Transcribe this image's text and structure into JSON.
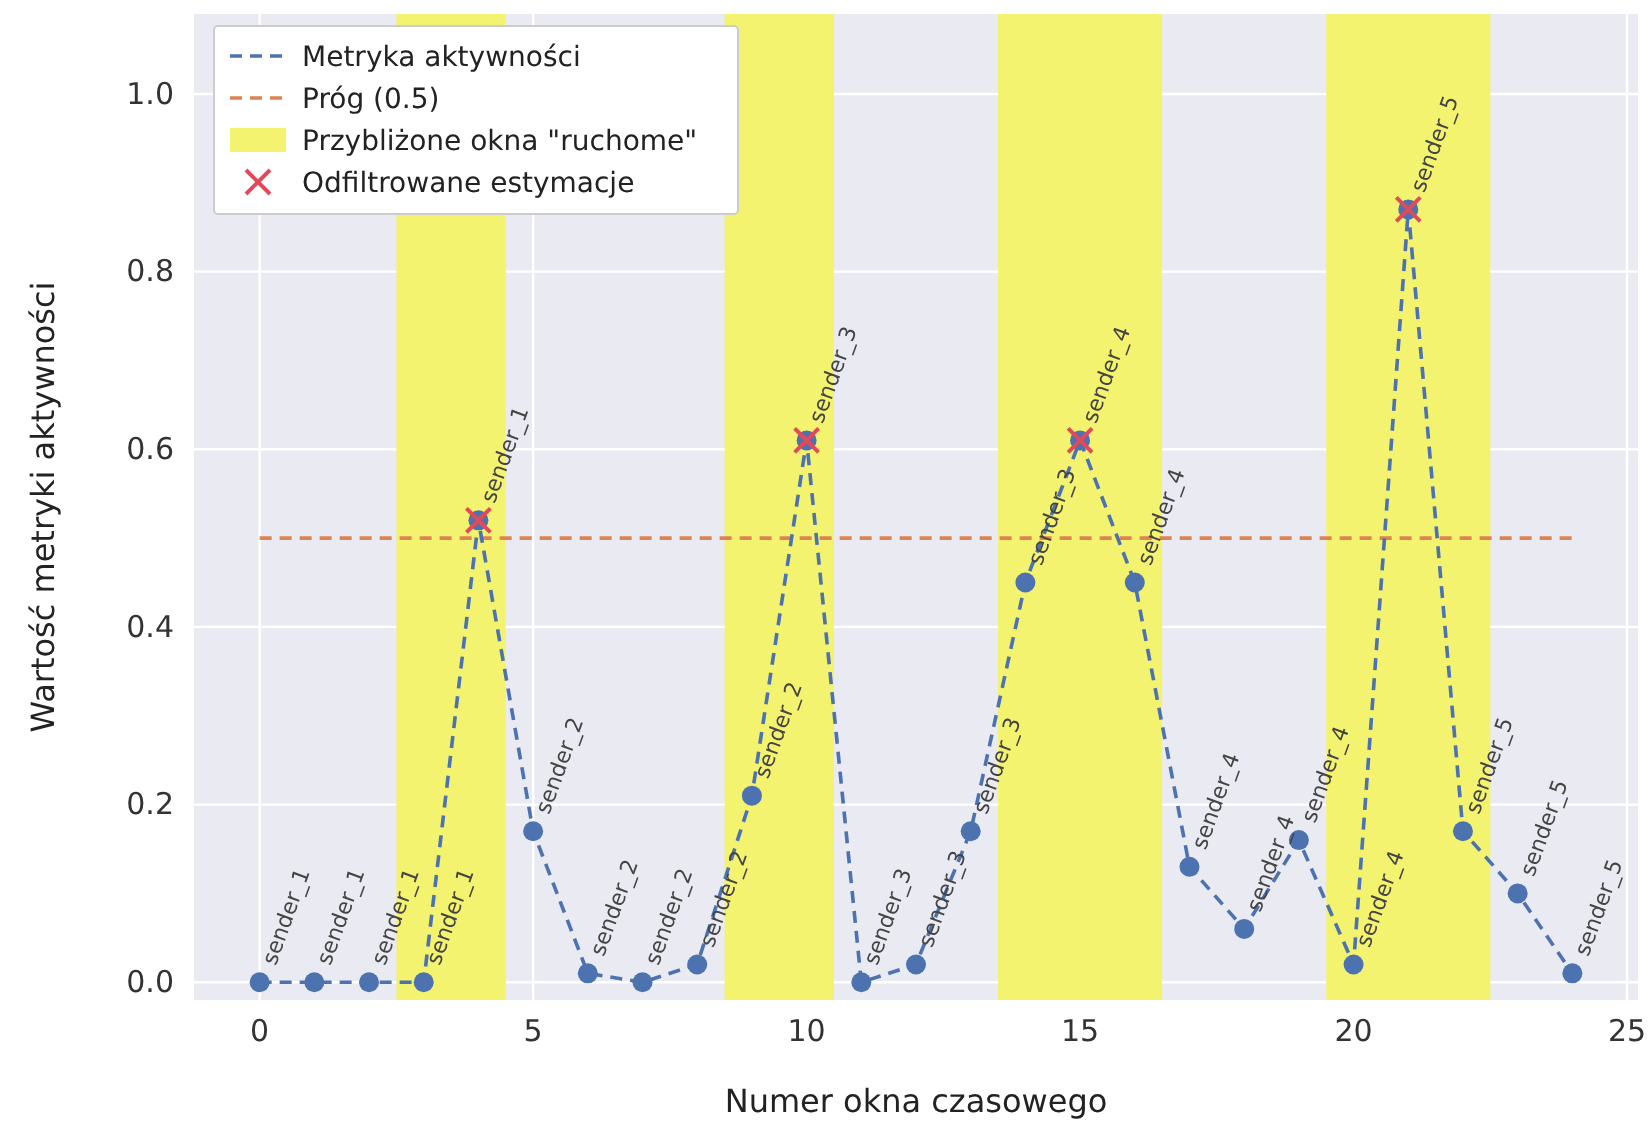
{
  "chart_data": {
    "type": "line",
    "xlabel": "Numer okna czasowego",
    "ylabel": "Wartość metryki aktywności",
    "xlim": [
      -1.2,
      25.2
    ],
    "ylim": [
      -0.02,
      1.09
    ],
    "xticks": [
      0,
      5,
      10,
      15,
      20,
      25
    ],
    "yticks": [
      {
        "value": 0,
        "label": "0.0"
      },
      {
        "value": 0.2,
        "label": "0.2"
      },
      {
        "value": 0.4,
        "label": "0.4"
      },
      {
        "value": 0.6,
        "label": "0.6"
      },
      {
        "value": 0.8,
        "label": "0.8"
      },
      {
        "value": 1,
        "label": "1.0"
      }
    ],
    "grid": true,
    "legend": "top left",
    "series": [
      {
        "name": "Metryka aktywności",
        "color": "#4c72b0",
        "line_style": "dashed",
        "marker": "circle",
        "x": [
          0,
          1,
          2,
          3,
          4,
          5,
          6,
          7,
          8,
          9,
          10,
          11,
          12,
          13,
          14,
          15,
          16,
          17,
          18,
          19,
          20,
          21,
          22,
          23,
          24
        ],
        "values": [
          0,
          0,
          0,
          0,
          0.52,
          0.17,
          0.01,
          0,
          0.02,
          0.21,
          0.61,
          0,
          0.02,
          0.17,
          0.45,
          0.61,
          0.45,
          0.13,
          0.06,
          0.16,
          0.02,
          0.87,
          0.17,
          0.1,
          0.01
        ]
      },
      {
        "name": "Odfiltrowane estymacje",
        "type": "scatter",
        "color": "#e24a5a",
        "marker": "cross",
        "x": [
          4,
          10,
          15,
          21
        ],
        "values": [
          0.52,
          0.61,
          0.61,
          0.87
        ]
      }
    ],
    "ref_lines": [
      {
        "axis": "y",
        "value": 0.5,
        "label": "Próg (0.5)",
        "color": "#dd8452",
        "line_style": "dashed"
      }
    ],
    "bands": [
      {
        "axis": "x",
        "from": 2.5,
        "to": 4.5,
        "label": "Przybliżone okna \"ruchome\"",
        "color": "#f3f370"
      },
      {
        "axis": "x",
        "from": 8.5,
        "to": 10.5,
        "color": "#f3f370"
      },
      {
        "axis": "x",
        "from": 13.5,
        "to": 16.5,
        "color": "#f3f370"
      },
      {
        "axis": "x",
        "from": 19.5,
        "to": 22.5,
        "color": "#f3f370"
      }
    ],
    "annotations": [
      {
        "text": "sender_1",
        "x": 0,
        "y": 0
      },
      {
        "text": "sender_1",
        "x": 1,
        "y": 0
      },
      {
        "text": "sender_1",
        "x": 2,
        "y": 0
      },
      {
        "text": "sender_1",
        "x": 3,
        "y": 0
      },
      {
        "text": "sender_1",
        "x": 4,
        "y": 0.52
      },
      {
        "text": "sender_2",
        "x": 5,
        "y": 0.17
      },
      {
        "text": "sender_2",
        "x": 6,
        "y": 0.01
      },
      {
        "text": "sender_2",
        "x": 7,
        "y": 0
      },
      {
        "text": "sender_2",
        "x": 8,
        "y": 0.02
      },
      {
        "text": "sender_2",
        "x": 9,
        "y": 0.21
      },
      {
        "text": "sender_3",
        "x": 10,
        "y": 0.61
      },
      {
        "text": "sender_3",
        "x": 11,
        "y": 0
      },
      {
        "text": "sender_3",
        "x": 12,
        "y": 0.02
      },
      {
        "text": "sender_3",
        "x": 13,
        "y": 0.17
      },
      {
        "text": "sender_3",
        "x": 14,
        "y": 0.45
      },
      {
        "text": "sender_4",
        "x": 15,
        "y": 0.61
      },
      {
        "text": "sender_4",
        "x": 16,
        "y": 0.45
      },
      {
        "text": "sender_4",
        "x": 17,
        "y": 0.13
      },
      {
        "text": "sender_4",
        "x": 18,
        "y": 0.06
      },
      {
        "text": "sender_4",
        "x": 19,
        "y": 0.16
      },
      {
        "text": "sender_4",
        "x": 20,
        "y": 0.02
      },
      {
        "text": "sender_5",
        "x": 21,
        "y": 0.87
      },
      {
        "text": "sender_5",
        "x": 22,
        "y": 0.17
      },
      {
        "text": "sender_5",
        "x": 23,
        "y": 0.1
      },
      {
        "text": "sender_5",
        "x": 24,
        "y": 0.01
      }
    ]
  }
}
